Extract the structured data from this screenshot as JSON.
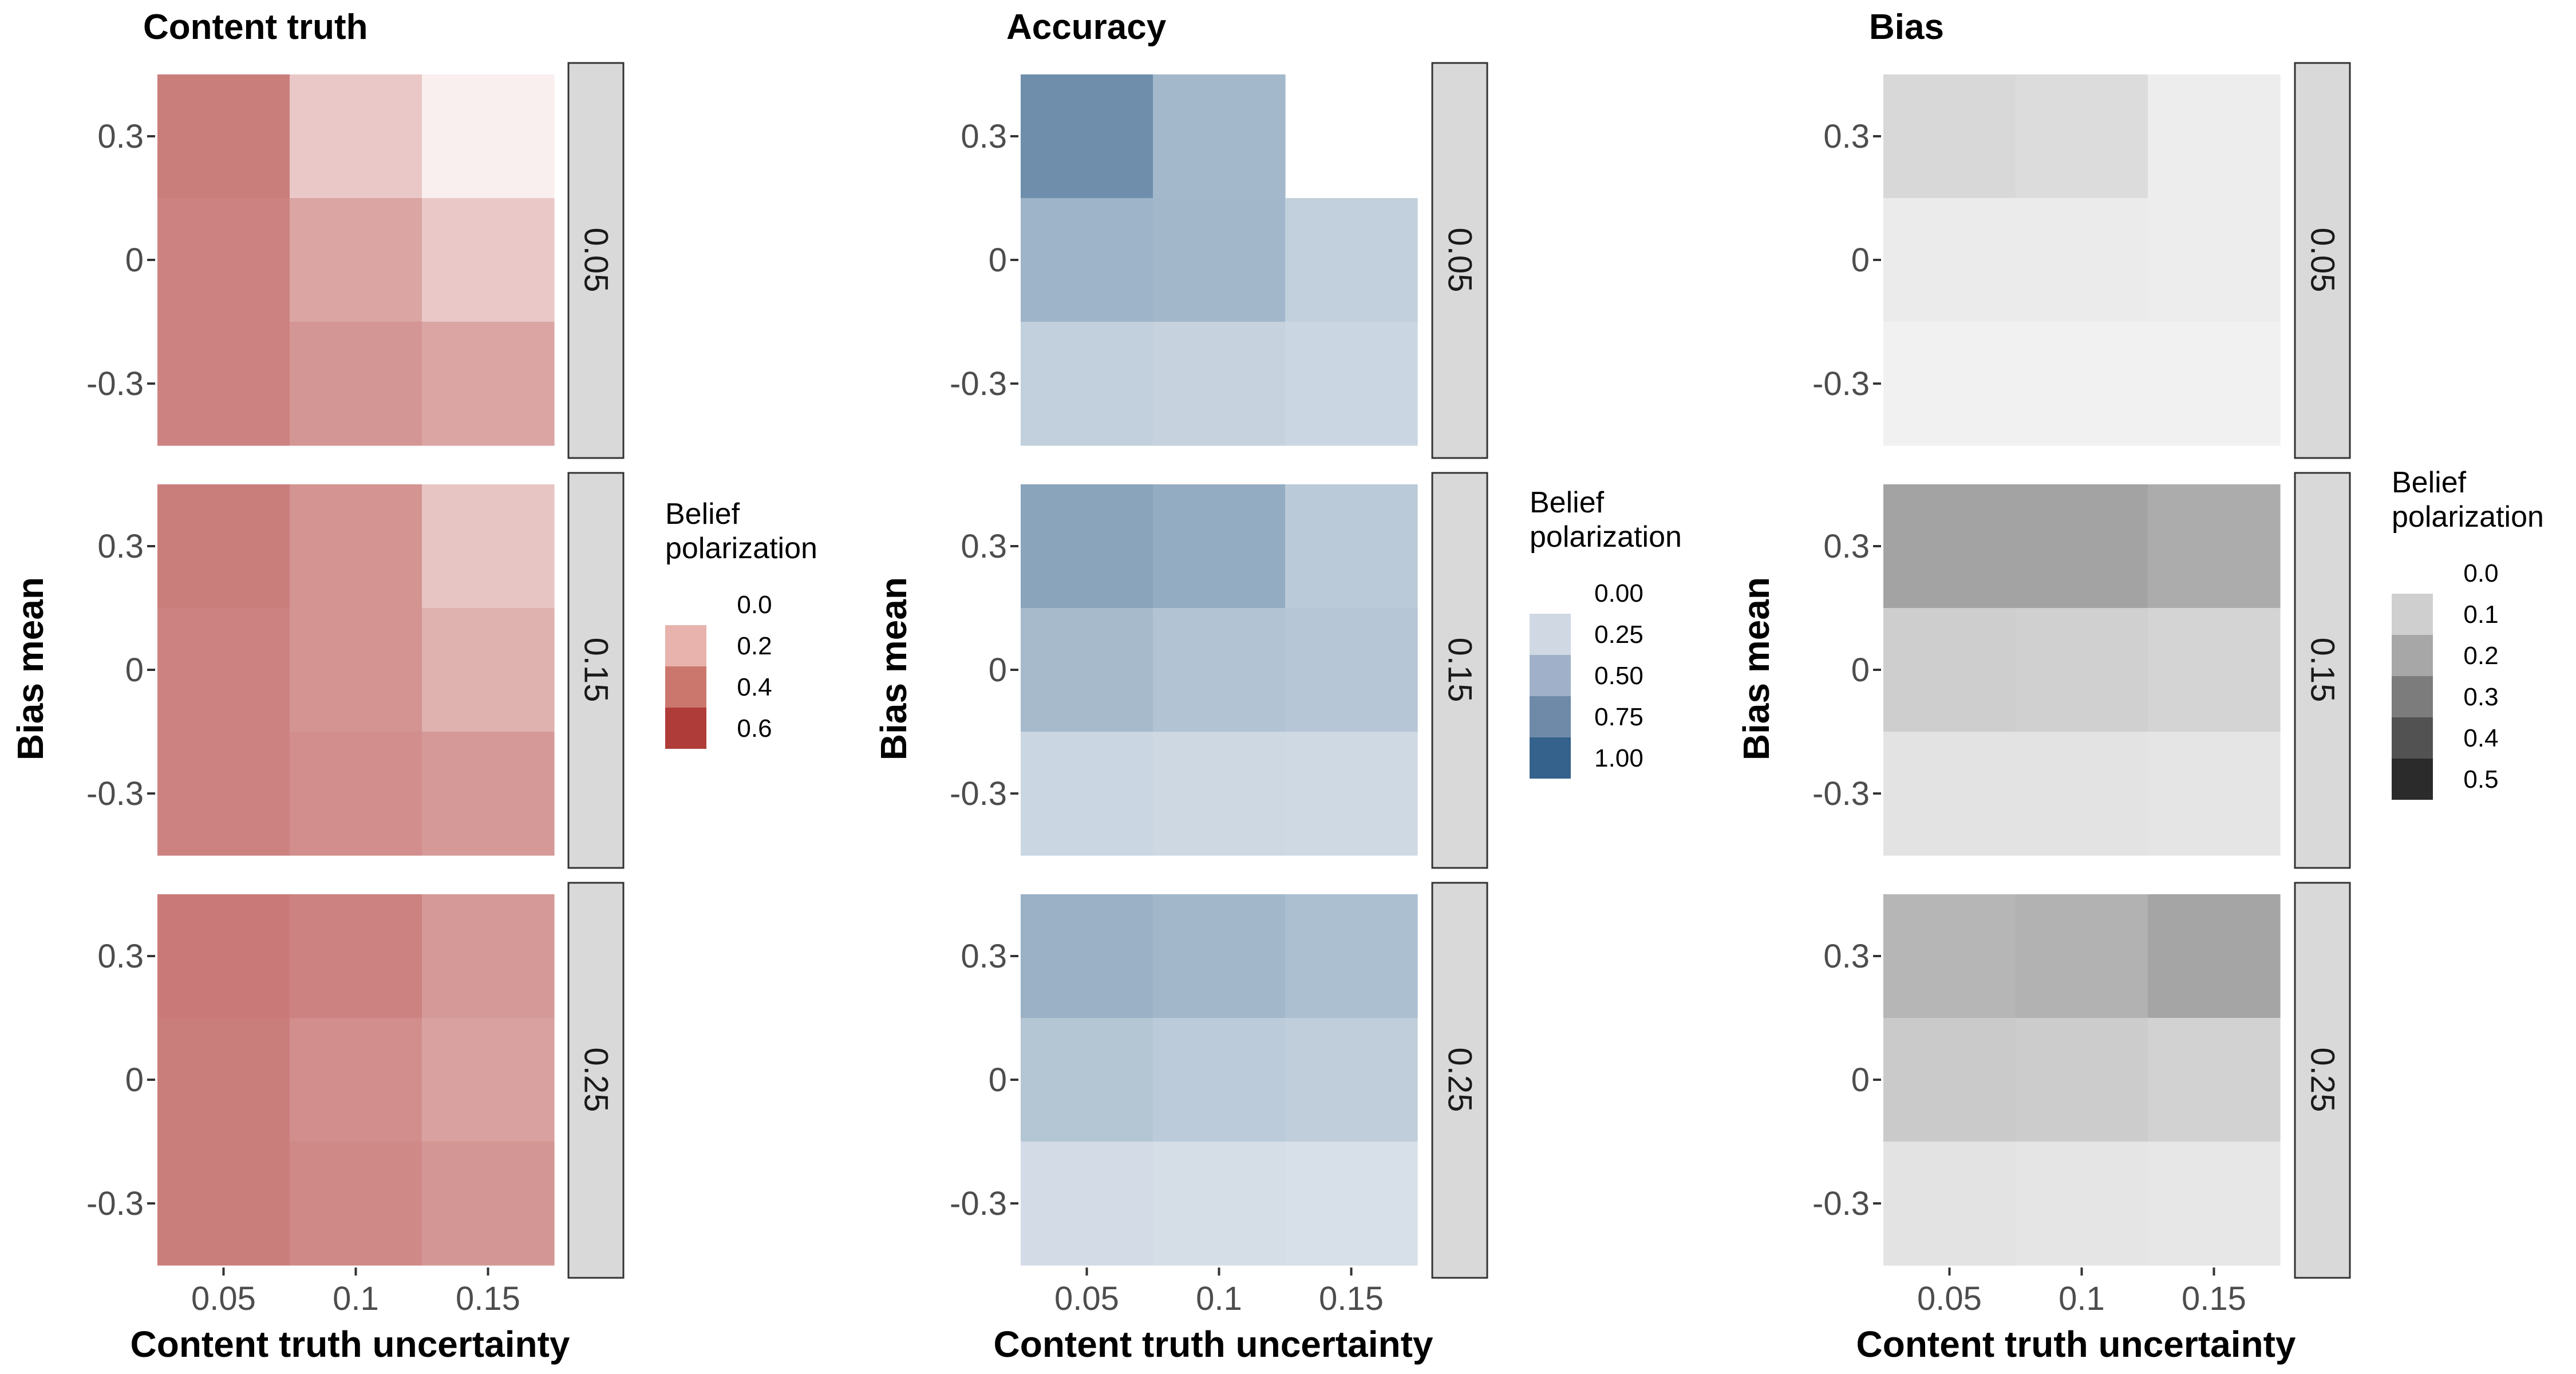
{
  "chart_data": [
    {
      "type": "heatmap",
      "title": "Content truth",
      "xlabel": "Content truth uncertainty",
      "ylabel": "Bias mean",
      "x_categories": [
        "0.05",
        "0.1",
        "0.15"
      ],
      "y_categories": [
        "0.3",
        "0",
        "-0.3"
      ],
      "facets": [
        {
          "label": "0.05",
          "values": [
            [
              0.66,
              0.28,
              0.08
            ],
            [
              0.64,
              0.46,
              0.28
            ],
            [
              0.64,
              0.54,
              0.46
            ]
          ]
        },
        {
          "label": "0.15",
          "values": [
            [
              0.66,
              0.55,
              0.3
            ],
            [
              0.64,
              0.55,
              0.4
            ],
            [
              0.64,
              0.58,
              0.52
            ]
          ]
        },
        {
          "label": "0.25",
          "values": [
            [
              0.68,
              0.64,
              0.52
            ],
            [
              0.66,
              0.58,
              0.48
            ],
            [
              0.66,
              0.6,
              0.54
            ]
          ]
        }
      ],
      "legend": {
        "title": "Belief polarization",
        "title_lines": [
          "Belief",
          "polarization"
        ],
        "labels": [
          "0.0",
          "0.2",
          "0.4",
          "0.6"
        ],
        "colors": [
          "#e7b3ac",
          "#cb776d",
          "#af3c38"
        ]
      },
      "colors": {
        "low": "#ffffff",
        "high": "#af3c38"
      }
    },
    {
      "type": "heatmap",
      "title": "Accuracy",
      "xlabel": "Content truth uncertainty",
      "ylabel": "Bias mean",
      "x_categories": [
        "0.05",
        "0.1",
        "0.15"
      ],
      "y_categories": [
        "0.3",
        "0",
        "-0.3"
      ],
      "facets": [
        {
          "label": "0.05",
          "values": [
            [
              0.72,
              0.45,
              null
            ],
            [
              0.48,
              0.46,
              0.3
            ],
            [
              0.3,
              0.28,
              0.26
            ]
          ]
        },
        {
          "label": "0.15",
          "values": [
            [
              0.58,
              0.53,
              0.34
            ],
            [
              0.44,
              0.38,
              0.36
            ],
            [
              0.26,
              0.25,
              0.24
            ]
          ]
        },
        {
          "label": "0.25",
          "values": [
            [
              0.5,
              0.46,
              0.41
            ],
            [
              0.37,
              0.33,
              0.31
            ],
            [
              0.22,
              0.21,
              0.2
            ]
          ]
        }
      ],
      "legend": {
        "title": "Belief polarization",
        "title_lines": [
          "Belief",
          "polarization"
        ],
        "labels": [
          "0.00",
          "0.25",
          "0.50",
          "0.75",
          "1.00"
        ],
        "colors": [
          "#d0d8e3",
          "#a0b0c8",
          "#6f8aa9",
          "#35628c"
        ]
      },
      "colors": {
        "low": "#ffffff",
        "high": "#35628c"
      }
    },
    {
      "type": "heatmap",
      "title": "Bias",
      "xlabel": "Content truth uncertainty",
      "ylabel": "Bias mean",
      "x_categories": [
        "0.05",
        "0.1",
        "0.15"
      ],
      "y_categories": [
        "0.3",
        "0",
        "-0.3"
      ],
      "facets": [
        {
          "label": "0.05",
          "values": [
            [
              0.15,
              0.13,
              0.05
            ],
            [
              0.06,
              0.06,
              0.05
            ],
            [
              0.03,
              0.03,
              0.03
            ]
          ]
        },
        {
          "label": "0.15",
          "values": [
            [
              0.41,
              0.41,
              0.37
            ],
            [
              0.2,
              0.19,
              0.17
            ],
            [
              0.1,
              0.1,
              0.09
            ]
          ]
        },
        {
          "label": "0.25",
          "values": [
            [
              0.32,
              0.34,
              0.4
            ],
            [
              0.22,
              0.21,
              0.18
            ],
            [
              0.1,
              0.09,
              0.08
            ]
          ]
        }
      ],
      "legend": {
        "title": "Belief polarization",
        "title_lines": [
          "Belief",
          "polarization"
        ],
        "labels": [
          "0.0",
          "0.1",
          "0.2",
          "0.3",
          "0.4",
          "0.5"
        ],
        "colors": [
          "#cfcfcf",
          "#a7a7a7",
          "#7c7c7c",
          "#525252",
          "#2b2b2b"
        ]
      },
      "colors": {
        "low": "#f7f7f7",
        "high": "#2b2b2b"
      }
    }
  ]
}
